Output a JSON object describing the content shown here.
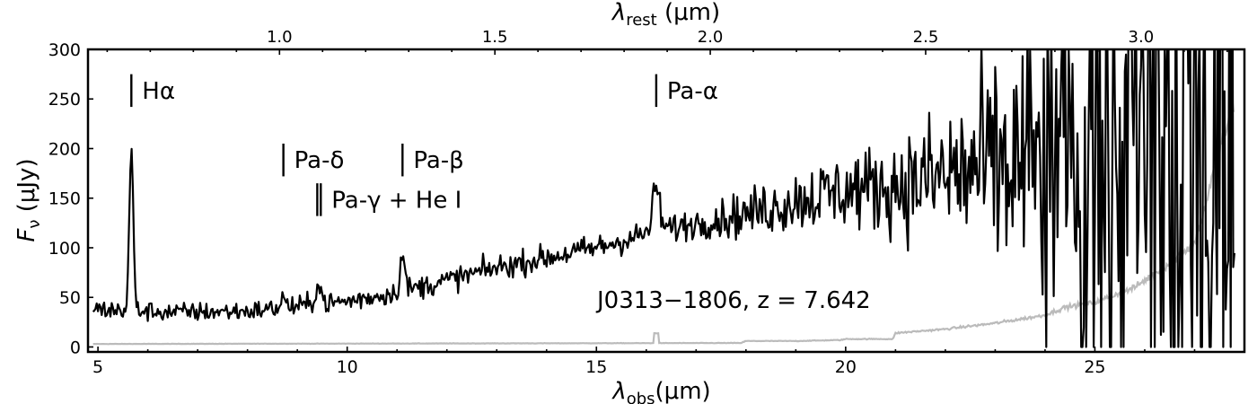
{
  "chart_data": {
    "type": "line",
    "title": "",
    "object_label": "J0313−1806, z = 7.642",
    "xlabel": {
      "main": "λ",
      "sub": "obs",
      "tail": "(μm)"
    },
    "ylabel": {
      "main": "F",
      "sub": "ν",
      "tail": " (μJy)"
    },
    "x2label": {
      "main": "λ",
      "sub": "rest",
      "tail": " (μm)"
    },
    "xlim": [
      4.8,
      28.0
    ],
    "ylim": [
      -5,
      300
    ],
    "redshift": 7.642,
    "xticks": [
      5,
      10,
      15,
      20,
      25
    ],
    "xtick_labels": [
      "5",
      "10",
      "15",
      "20",
      "25"
    ],
    "yticks": [
      0,
      50,
      100,
      150,
      200,
      250,
      300
    ],
    "ytick_labels": [
      "0",
      "50",
      "100",
      "150",
      "200",
      "250",
      "300"
    ],
    "x2ticks": [
      1.0,
      1.5,
      2.0,
      2.5,
      3.0
    ],
    "x2tick_labels": [
      "1.0",
      "1.5",
      "2.0",
      "2.5",
      "3.0"
    ],
    "line_markers": [
      {
        "label": "Hα",
        "x": 5.67,
        "y0": 242,
        "y1": 275
      },
      {
        "label": "Pa-δ",
        "x": 8.72,
        "y0": 172,
        "y1": 205
      },
      {
        "label": "Pa-β",
        "x": 11.11,
        "y0": 172,
        "y1": 205
      },
      {
        "label": "Pa-γ + He I",
        "x": 9.4,
        "x_pair": 9.47,
        "y0": 132,
        "y1": 165
      },
      {
        "label": "Pa-α",
        "x": 16.2,
        "y0": 242,
        "y1": 275
      }
    ],
    "series": [
      {
        "name": "flux",
        "color": "#000000",
        "continuum": [
          [
            4.9,
            38
          ],
          [
            6.5,
            35
          ],
          [
            8.0,
            36
          ],
          [
            9.0,
            41
          ],
          [
            10.0,
            46
          ],
          [
            11.0,
            55
          ],
          [
            12.0,
            67
          ],
          [
            13.0,
            80
          ],
          [
            14.0,
            90
          ],
          [
            15.0,
            100
          ],
          [
            16.0,
            114
          ],
          [
            17.0,
            125
          ],
          [
            18.0,
            134
          ],
          [
            19.0,
            148
          ],
          [
            20.0,
            158
          ],
          [
            21.0,
            162
          ],
          [
            22.0,
            172
          ],
          [
            23.0,
            180
          ],
          [
            24.0,
            188
          ],
          [
            25.0,
            198
          ],
          [
            26.0,
            205
          ],
          [
            27.8,
            225
          ]
        ],
        "noise": [
          [
            4.9,
            7
          ],
          [
            8.0,
            7
          ],
          [
            10.0,
            8
          ],
          [
            14.0,
            9
          ],
          [
            17.0,
            11
          ],
          [
            18.5,
            20
          ],
          [
            20.0,
            28
          ],
          [
            21.0,
            34
          ],
          [
            22.0,
            55
          ],
          [
            23.0,
            80
          ],
          [
            24.0,
            110
          ],
          [
            25.0,
            150
          ],
          [
            26.0,
            210
          ],
          [
            27.8,
            280
          ]
        ],
        "emission_lines": [
          [
            5.67,
            160,
            0.04
          ],
          [
            8.72,
            10,
            0.05
          ],
          [
            9.42,
            20,
            0.06
          ],
          [
            11.11,
            35,
            0.05
          ],
          [
            16.2,
            45,
            0.07
          ]
        ]
      },
      {
        "name": "error",
        "color": "#bbbbbb",
        "points": [
          [
            4.9,
            3
          ],
          [
            17.9,
            4
          ],
          [
            18.0,
            6
          ],
          [
            19.0,
            6
          ],
          [
            19.9,
            7
          ],
          [
            20.0,
            8
          ],
          [
            20.95,
            8
          ],
          [
            21.0,
            14
          ],
          [
            22.0,
            18
          ],
          [
            23.0,
            24
          ],
          [
            24.0,
            32
          ],
          [
            24.4,
            40
          ],
          [
            25.0,
            45
          ],
          [
            25.8,
            60
          ],
          [
            26.5,
            85
          ],
          [
            27.0,
            105
          ],
          [
            27.2,
            140
          ],
          [
            27.5,
            200
          ],
          [
            27.7,
            230
          ],
          [
            27.8,
            245
          ]
        ]
      }
    ],
    "grid": false
  }
}
